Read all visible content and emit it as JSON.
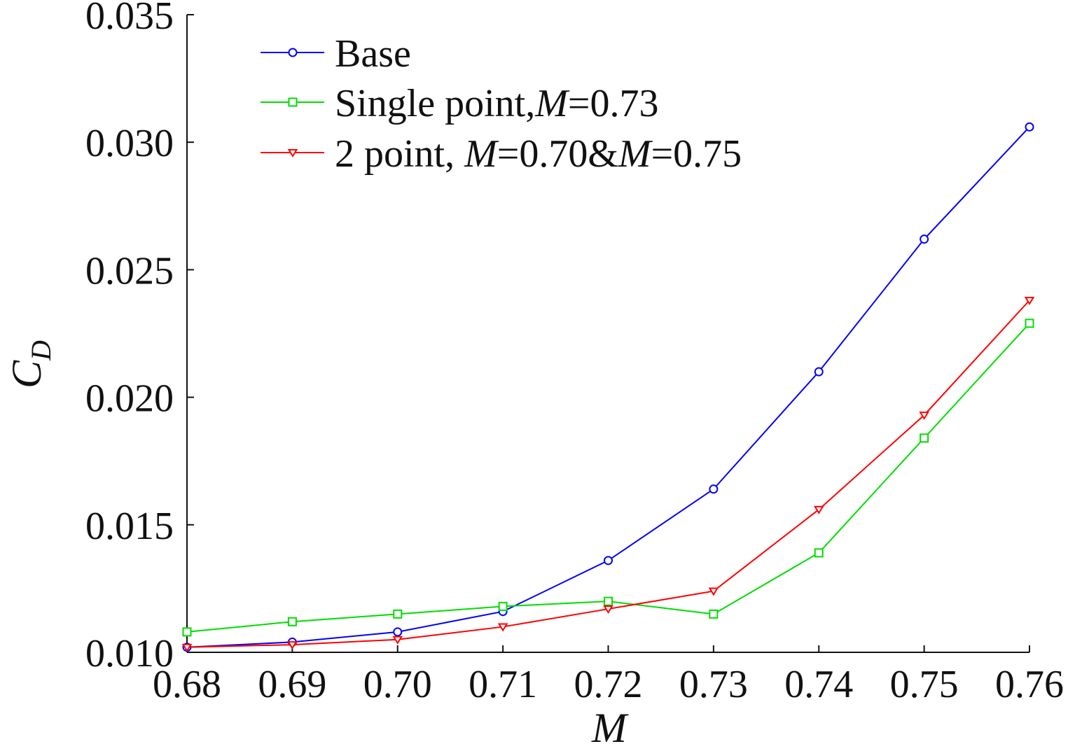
{
  "chart_data": {
    "type": "line",
    "xlabel": "M",
    "ylabel": {
      "main": "C",
      "sub": "D"
    },
    "xlim": [
      0.68,
      0.76
    ],
    "ylim": [
      0.01,
      0.035
    ],
    "xticks": [
      "0.68",
      "0.69",
      "0.70",
      "0.71",
      "0.72",
      "0.73",
      "0.74",
      "0.75",
      "0.76"
    ],
    "yticks": [
      "0.010",
      "0.015",
      "0.020",
      "0.025",
      "0.030",
      "0.035"
    ],
    "grid": false,
    "legend_position": "top-left",
    "x": [
      0.68,
      0.69,
      0.7,
      0.71,
      0.72,
      0.73,
      0.74,
      0.75,
      0.76
    ],
    "series": [
      {
        "name": "Base",
        "legend": [
          {
            "t": "Base",
            "i": false
          }
        ],
        "color": "#0000ff",
        "marker": "circle",
        "values": [
          0.0102,
          0.0104,
          0.0108,
          0.0116,
          0.0136,
          0.0164,
          0.021,
          0.0262,
          0.0306
        ]
      },
      {
        "name": "Single point,M=0.73",
        "legend": [
          {
            "t": "Single point,",
            "i": false
          },
          {
            "t": "M",
            "i": true
          },
          {
            "t": "=0.73",
            "i": false
          }
        ],
        "color": "#00dd00",
        "marker": "square",
        "values": [
          0.0108,
          0.0112,
          0.0115,
          0.0118,
          0.012,
          0.0115,
          0.0139,
          0.0184,
          0.0229
        ]
      },
      {
        "name": "2 point, M=0.70&M=0.75",
        "legend": [
          {
            "t": "2 point, ",
            "i": false
          },
          {
            "t": "M",
            "i": true
          },
          {
            "t": "=0.70&",
            "i": false
          },
          {
            "t": "M",
            "i": true
          },
          {
            "t": "=0.75",
            "i": false
          }
        ],
        "color": "#ff0000",
        "marker": "triangle-down",
        "values": [
          0.0102,
          0.0103,
          0.0105,
          0.011,
          0.0117,
          0.0124,
          0.0156,
          0.0193,
          0.0238
        ]
      }
    ]
  }
}
